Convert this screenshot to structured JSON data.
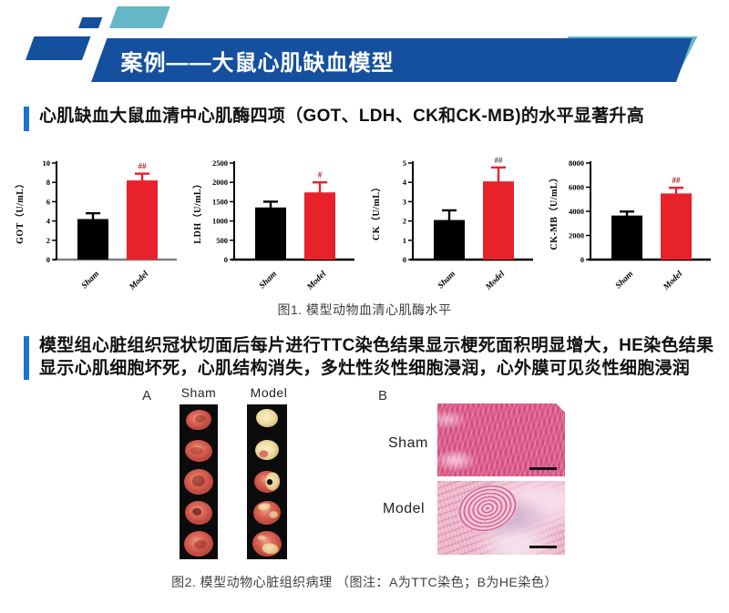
{
  "colors": {
    "banner_blue": "#14509e",
    "accent_teal": "#66b7c8",
    "section_bar_blue": "#1e73d2",
    "bar_black": "#000000",
    "bar_red": "#e8222a",
    "histo_pink": "#de5f8e"
  },
  "banner": {
    "title": "案例——大鼠心肌缺血模型"
  },
  "section1": {
    "title": "心肌缺血大鼠血清中心肌酶四项（GOT、LDH、CK和CK-MB)的水平显著升高"
  },
  "figure1": {
    "caption": "图1. 模型动物血清心肌酶水平"
  },
  "section2": {
    "line1": "模型组心脏组织冠状切面后每片进行TTC染色结果显示梗死面积明显增大，HE染色结果",
    "line2": "显示心肌细胞坏死，心肌结构消失，多灶性炎性细胞浸润，心外膜可见炎性细胞浸润"
  },
  "figure2": {
    "caption": "图2. 模型动物心脏组织病理 （图注：A为TTC染色；B为HE染色）",
    "panelA": {
      "label": "A",
      "columns": [
        "Sham",
        "Model"
      ]
    },
    "panelB": {
      "label": "B",
      "rows": [
        "Sham",
        "Model"
      ]
    }
  },
  "chart_data": [
    {
      "id": "got",
      "type": "bar",
      "title": "",
      "ylabel": "GOT（U/mL）",
      "xlabel": "",
      "categories": [
        "Sham",
        "Model"
      ],
      "values": [
        4.2,
        8.2
      ],
      "errors": [
        0.6,
        0.7
      ],
      "ylim": [
        0,
        10
      ],
      "yticks": [
        0,
        2,
        4,
        6,
        8,
        10
      ],
      "bar_colors": [
        "#000000",
        "#e8222a"
      ],
      "significance": {
        "text": "##",
        "bar": "Model",
        "color": "#b22222"
      },
      "baseline_color": "#7d7d7d"
    },
    {
      "id": "ldh",
      "type": "bar",
      "title": "",
      "ylabel": "LDH（U/mL）",
      "xlabel": "",
      "categories": [
        "Sham",
        "Model"
      ],
      "values": [
        1350,
        1740
      ],
      "errors": [
        150,
        260
      ],
      "ylim": [
        0,
        2500
      ],
      "yticks": [
        0,
        500,
        1000,
        1500,
        2000,
        2500
      ],
      "bar_colors": [
        "#000000",
        "#e8222a"
      ],
      "significance": {
        "text": "#",
        "bar": "Model",
        "color": "#b22222"
      },
      "baseline_color": "#000000"
    },
    {
      "id": "ck",
      "type": "bar",
      "title": "",
      "ylabel": "CK（U/mL）",
      "xlabel": "",
      "categories": [
        "Sham",
        "Model"
      ],
      "values": [
        2.05,
        4.05
      ],
      "errors": [
        0.5,
        0.72
      ],
      "ylim": [
        0,
        5
      ],
      "yticks": [
        0,
        1,
        2,
        3,
        4,
        5
      ],
      "bar_colors": [
        "#000000",
        "#e8222a"
      ],
      "significance": {
        "text": "##",
        "bar": "Model",
        "color": "#555555"
      },
      "baseline_color": "#000000"
    },
    {
      "id": "ckmb",
      "type": "bar",
      "title": "",
      "ylabel": "CK-MB（U/mL）",
      "xlabel": "",
      "categories": [
        "Sham",
        "Model"
      ],
      "values": [
        3650,
        5480
      ],
      "errors": [
        330,
        470
      ],
      "ylim": [
        0,
        8000
      ],
      "yticks": [
        0,
        2000,
        4000,
        6000,
        8000
      ],
      "bar_colors": [
        "#000000",
        "#e8222a"
      ],
      "significance": {
        "text": "##",
        "bar": "Model",
        "color": "#b22222"
      },
      "baseline_color": "#000000"
    }
  ]
}
